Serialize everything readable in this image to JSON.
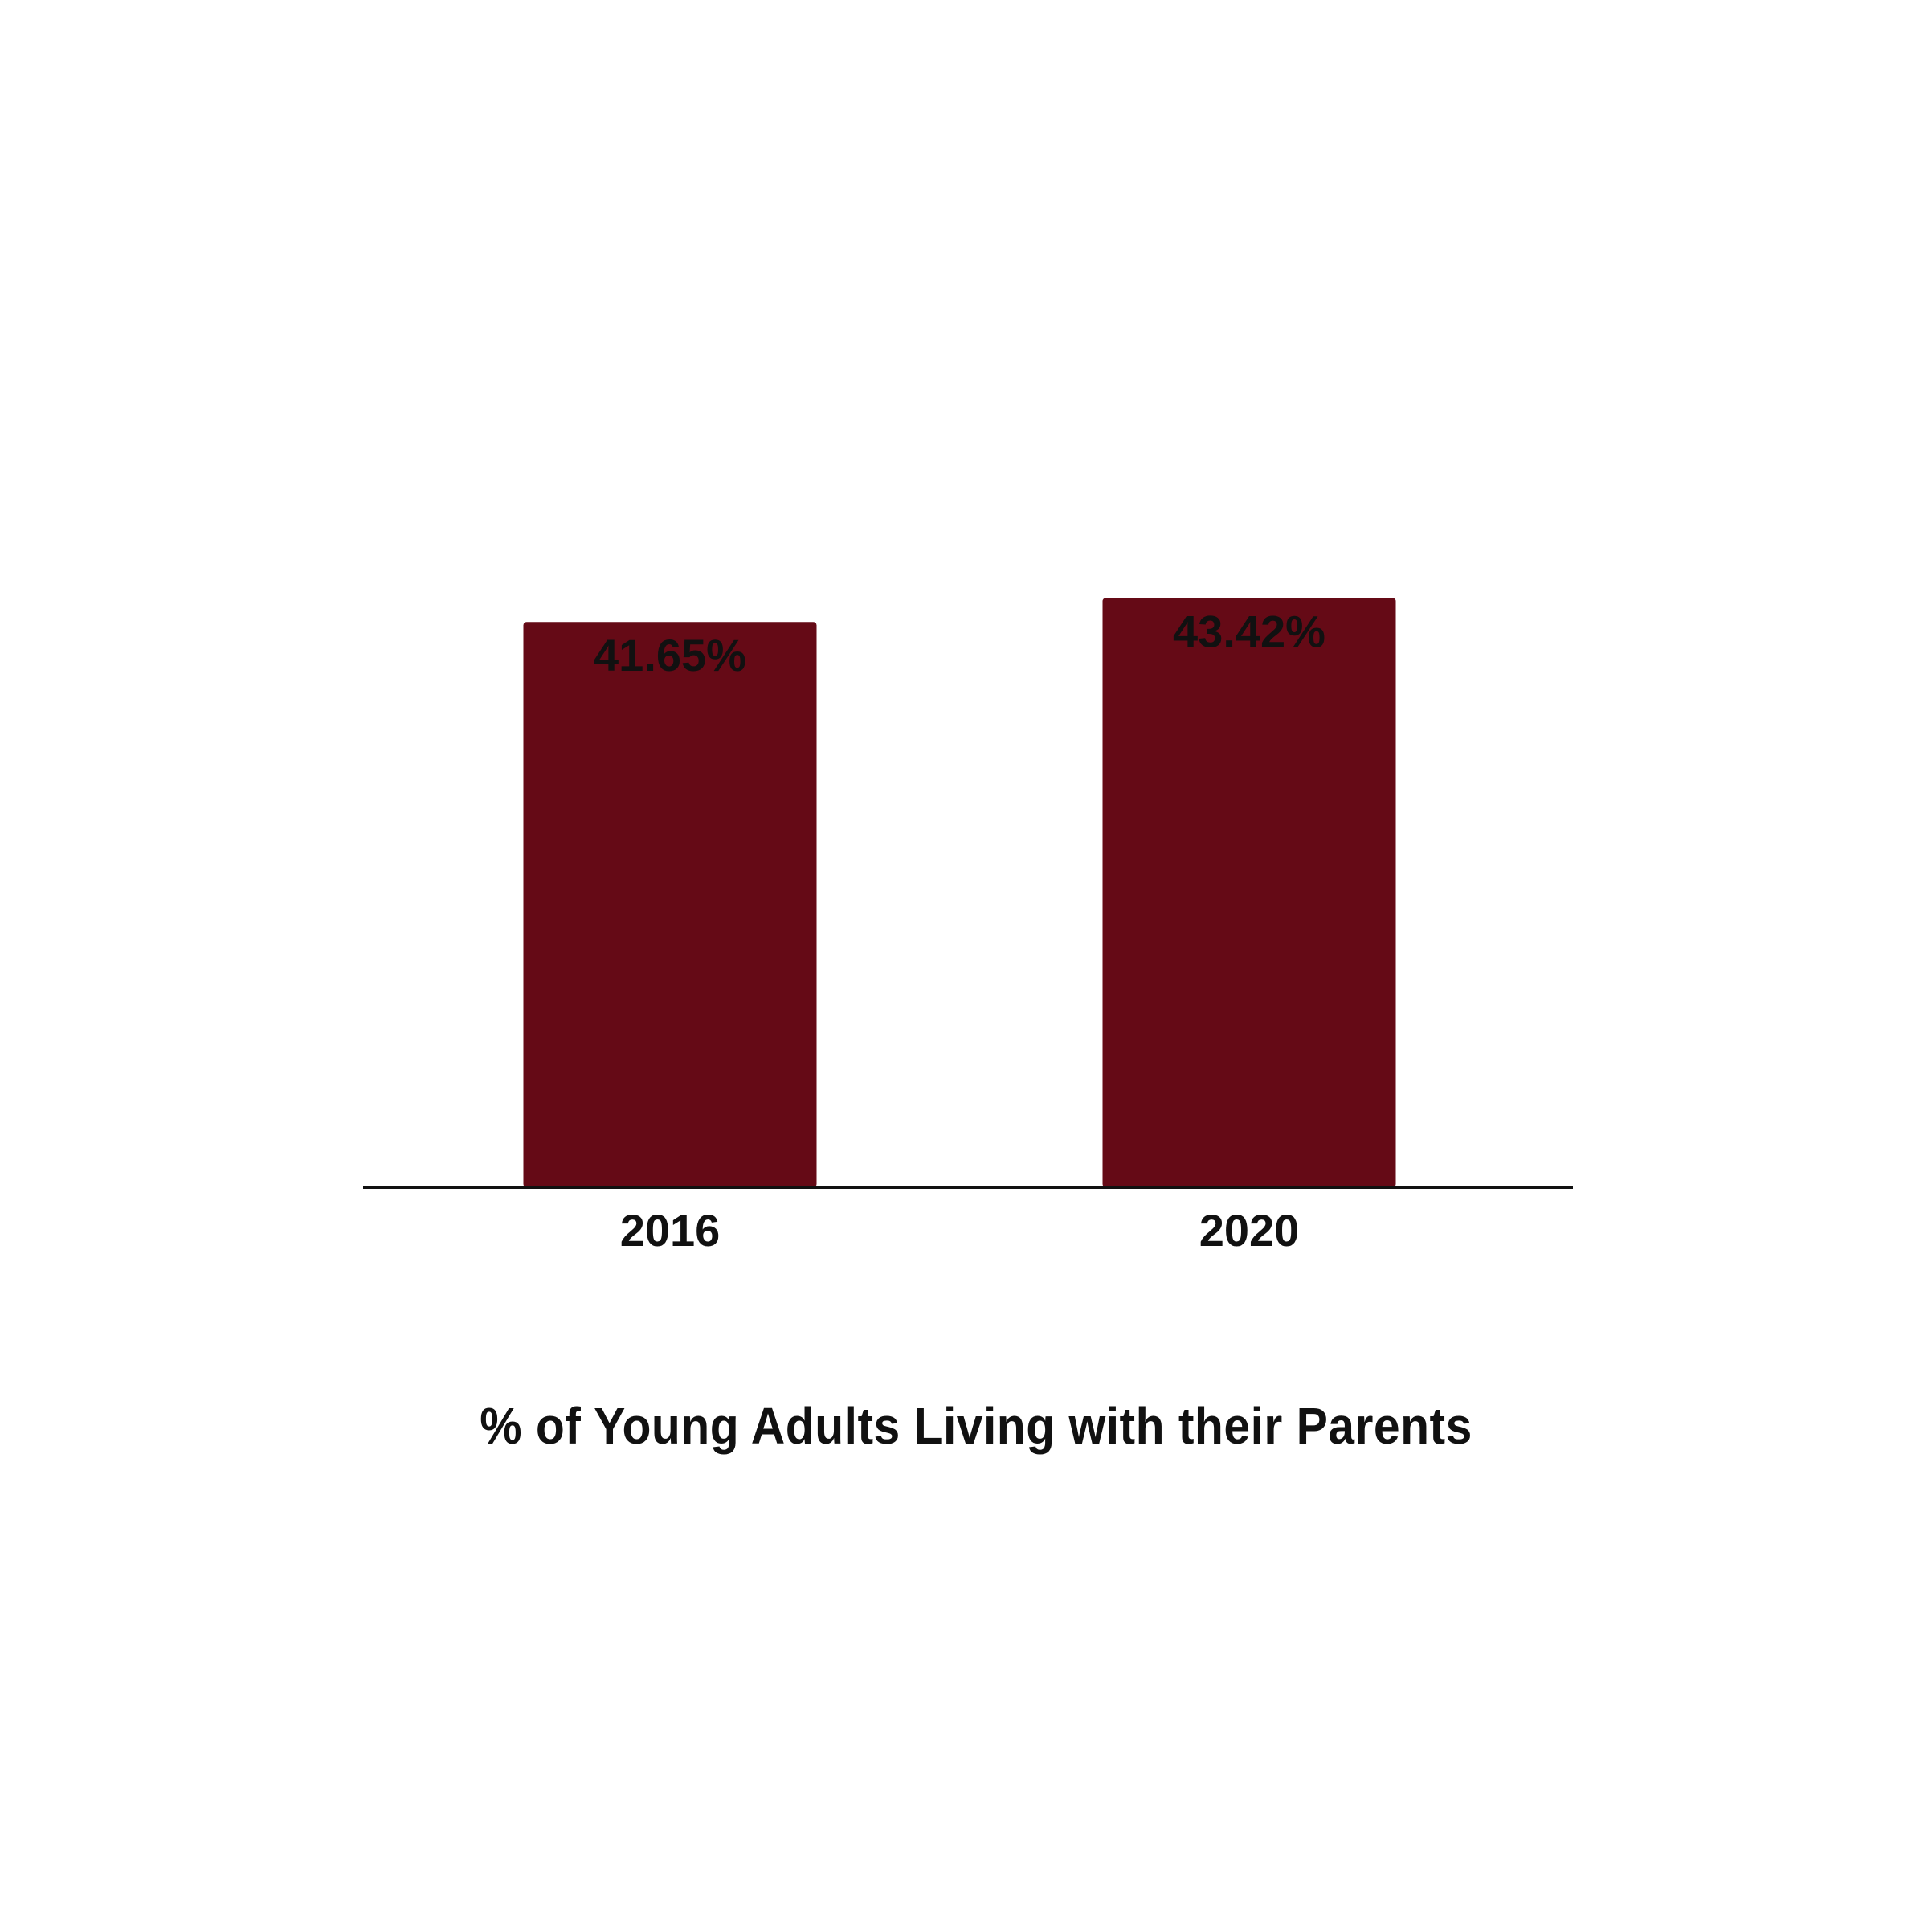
{
  "chart_data": {
    "type": "bar",
    "title": "% of Young Adults Living with their Parents",
    "categories": [
      "2016",
      "2020"
    ],
    "values": [
      41.65,
      43.42
    ],
    "value_labels": [
      "41.65%",
      "43.42%"
    ],
    "xlabel": "",
    "ylabel": "",
    "ylim": [
      0,
      100
    ],
    "grid": false,
    "legend": "none",
    "colors": {
      "bar": "#650a16",
      "axis": "#111111",
      "text": "#111111"
    }
  }
}
